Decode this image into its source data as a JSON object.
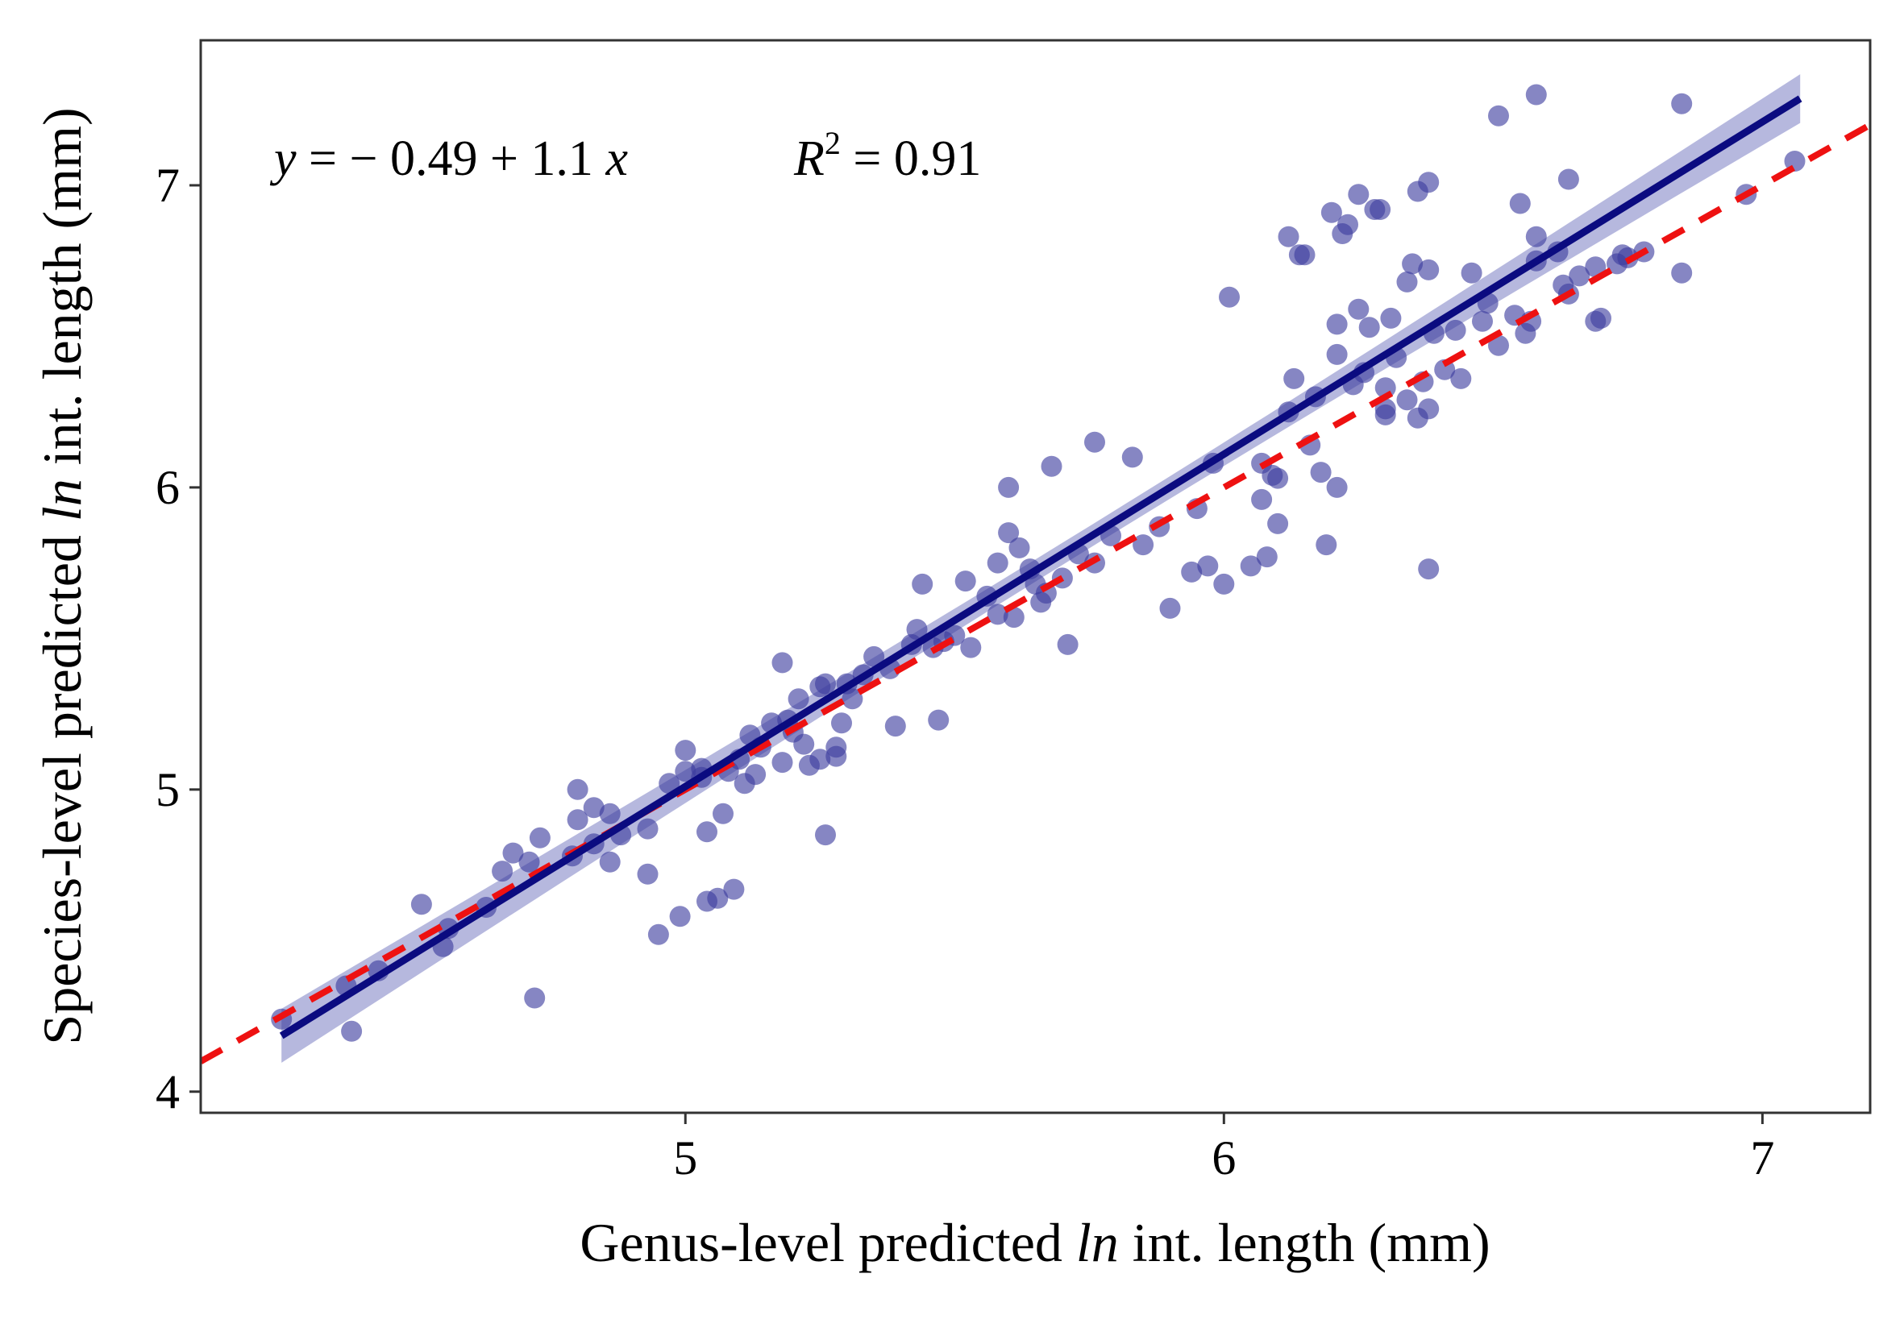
{
  "chart_data": {
    "type": "scatter",
    "xlabel": {
      "pre": "Genus-level predicted ",
      "ital": "ln",
      "post": " int. length (mm)"
    },
    "ylabel": {
      "pre": "Species-level predicted ",
      "ital": "ln",
      "post": " int. length (mm)"
    },
    "annotation": {
      "eq_y": "y",
      "eq_rest": " = − 0.49 + 1.1 ",
      "eq_x": "x",
      "r2_R": "R",
      "r2_sup": "2",
      "r2_rest": " = 0.91"
    },
    "xlim": [
      4.1,
      7.2
    ],
    "ylim": [
      3.93,
      7.48
    ],
    "xticks": [
      5,
      6,
      7
    ],
    "yticks": [
      4,
      5,
      6,
      7
    ],
    "x_tick_labels": [
      "5",
      "6",
      "7"
    ],
    "y_tick_labels": [
      "4",
      "5",
      "6",
      "7"
    ],
    "grid": false,
    "legend": "none",
    "regression": {
      "intercept": -0.49,
      "slope": 1.1,
      "x_range": [
        4.25,
        7.07
      ],
      "r2": 0.91
    },
    "reference_line": {
      "intercept": 0,
      "slope": 1,
      "style": "dashed"
    },
    "colors": {
      "points": "#3b3b9e",
      "fit_line": "#0b0b80",
      "ribbon": "#a9acd8",
      "reference_line": "#ee1111",
      "frame": "#333333"
    },
    "points": [
      [
        4.25,
        4.24
      ],
      [
        4.37,
        4.35
      ],
      [
        4.38,
        4.2
      ],
      [
        4.43,
        4.4
      ],
      [
        4.51,
        4.62
      ],
      [
        4.55,
        4.48
      ],
      [
        4.56,
        4.54
      ],
      [
        4.63,
        4.61
      ],
      [
        4.66,
        4.73
      ],
      [
        4.68,
        4.79
      ],
      [
        4.71,
        4.76
      ],
      [
        4.72,
        4.31
      ],
      [
        4.73,
        4.84
      ],
      [
        4.79,
        4.78
      ],
      [
        4.8,
        4.9
      ],
      [
        4.8,
        5.0
      ],
      [
        4.83,
        4.94
      ],
      [
        4.83,
        4.82
      ],
      [
        4.86,
        4.76
      ],
      [
        4.86,
        4.92
      ],
      [
        4.88,
        4.85
      ],
      [
        4.93,
        4.72
      ],
      [
        4.93,
        4.87
      ],
      [
        4.95,
        4.52
      ],
      [
        4.97,
        5.02
      ],
      [
        4.99,
        4.58
      ],
      [
        5.0,
        5.06
      ],
      [
        5.0,
        5.13
      ],
      [
        5.03,
        5.07
      ],
      [
        5.03,
        5.04
      ],
      [
        5.04,
        4.86
      ],
      [
        5.04,
        4.63
      ],
      [
        5.06,
        4.64
      ],
      [
        5.07,
        4.92
      ],
      [
        5.08,
        5.06
      ],
      [
        5.09,
        4.67
      ],
      [
        5.1,
        5.1
      ],
      [
        5.11,
        5.02
      ],
      [
        5.12,
        5.18
      ],
      [
        5.13,
        5.05
      ],
      [
        5.14,
        5.14
      ],
      [
        5.16,
        5.22
      ],
      [
        5.18,
        5.09
      ],
      [
        5.18,
        5.42
      ],
      [
        5.19,
        5.23
      ],
      [
        5.2,
        5.19
      ],
      [
        5.21,
        5.3
      ],
      [
        5.22,
        5.15
      ],
      [
        5.23,
        5.08
      ],
      [
        5.25,
        5.34
      ],
      [
        5.25,
        5.1
      ],
      [
        5.26,
        5.35
      ],
      [
        5.26,
        4.85
      ],
      [
        5.28,
        5.11
      ],
      [
        5.28,
        5.14
      ],
      [
        5.29,
        5.22
      ],
      [
        5.3,
        5.35
      ],
      [
        5.31,
        5.3
      ],
      [
        5.33,
        5.38
      ],
      [
        5.35,
        5.44
      ],
      [
        5.38,
        5.4
      ],
      [
        5.39,
        5.21
      ],
      [
        5.42,
        5.48
      ],
      [
        5.43,
        5.53
      ],
      [
        5.44,
        5.68
      ],
      [
        5.46,
        5.47
      ],
      [
        5.47,
        5.23
      ],
      [
        5.48,
        5.49
      ],
      [
        5.5,
        5.51
      ],
      [
        5.52,
        5.69
      ],
      [
        5.53,
        5.47
      ],
      [
        5.56,
        5.64
      ],
      [
        5.58,
        5.58
      ],
      [
        5.58,
        5.75
      ],
      [
        5.6,
        5.85
      ],
      [
        5.6,
        6.0
      ],
      [
        5.61,
        5.57
      ],
      [
        5.62,
        5.8
      ],
      [
        5.64,
        5.73
      ],
      [
        5.65,
        5.68
      ],
      [
        5.66,
        5.62
      ],
      [
        5.67,
        5.65
      ],
      [
        5.68,
        6.07
      ],
      [
        5.7,
        5.7
      ],
      [
        5.71,
        5.48
      ],
      [
        5.73,
        5.78
      ],
      [
        5.76,
        5.75
      ],
      [
        5.76,
        6.15
      ],
      [
        5.79,
        5.84
      ],
      [
        5.83,
        6.1
      ],
      [
        5.85,
        5.81
      ],
      [
        5.88,
        5.87
      ],
      [
        5.9,
        5.6
      ],
      [
        5.94,
        5.72
      ],
      [
        5.95,
        5.93
      ],
      [
        5.97,
        5.74
      ],
      [
        5.98,
        6.08
      ],
      [
        6.0,
        5.68
      ],
      [
        6.01,
        6.63
      ],
      [
        6.05,
        5.74
      ],
      [
        6.07,
        6.08
      ],
      [
        6.07,
        5.96
      ],
      [
        6.08,
        5.77
      ],
      [
        6.09,
        6.04
      ],
      [
        6.1,
        5.88
      ],
      [
        6.1,
        6.03
      ],
      [
        6.12,
        6.83
      ],
      [
        6.12,
        6.25
      ],
      [
        6.13,
        6.36
      ],
      [
        6.14,
        6.77
      ],
      [
        6.15,
        6.77
      ],
      [
        6.16,
        6.14
      ],
      [
        6.17,
        6.3
      ],
      [
        6.18,
        6.05
      ],
      [
        6.19,
        5.81
      ],
      [
        6.2,
        6.91
      ],
      [
        6.21,
        6.54
      ],
      [
        6.21,
        6.44
      ],
      [
        6.21,
        6.0
      ],
      [
        6.22,
        6.84
      ],
      [
        6.23,
        6.87
      ],
      [
        6.24,
        6.34
      ],
      [
        6.25,
        6.97
      ],
      [
        6.25,
        6.59
      ],
      [
        6.26,
        6.38
      ],
      [
        6.27,
        6.53
      ],
      [
        6.28,
        6.92
      ],
      [
        6.29,
        6.92
      ],
      [
        6.3,
        6.33
      ],
      [
        6.3,
        6.26
      ],
      [
        6.3,
        6.24
      ],
      [
        6.31,
        6.56
      ],
      [
        6.32,
        6.43
      ],
      [
        6.34,
        6.29
      ],
      [
        6.34,
        6.68
      ],
      [
        6.35,
        6.74
      ],
      [
        6.36,
        6.23
      ],
      [
        6.36,
        6.98
      ],
      [
        6.37,
        6.35
      ],
      [
        6.38,
        6.26
      ],
      [
        6.38,
        7.01
      ],
      [
        6.38,
        6.72
      ],
      [
        6.38,
        5.73
      ],
      [
        6.39,
        6.51
      ],
      [
        6.41,
        6.39
      ],
      [
        6.43,
        6.52
      ],
      [
        6.44,
        6.36
      ],
      [
        6.46,
        6.71
      ],
      [
        6.48,
        6.55
      ],
      [
        6.49,
        6.61
      ],
      [
        6.51,
        6.47
      ],
      [
        6.51,
        7.23
      ],
      [
        6.54,
        6.57
      ],
      [
        6.55,
        6.94
      ],
      [
        6.56,
        6.51
      ],
      [
        6.57,
        6.55
      ],
      [
        6.58,
        6.75
      ],
      [
        6.58,
        7.3
      ],
      [
        6.58,
        6.83
      ],
      [
        6.62,
        6.78
      ],
      [
        6.63,
        6.67
      ],
      [
        6.64,
        7.02
      ],
      [
        6.64,
        6.64
      ],
      [
        6.66,
        6.7
      ],
      [
        6.69,
        6.55
      ],
      [
        6.69,
        6.73
      ],
      [
        6.7,
        6.56
      ],
      [
        6.73,
        6.74
      ],
      [
        6.74,
        6.77
      ],
      [
        6.75,
        6.76
      ],
      [
        6.78,
        6.78
      ],
      [
        6.85,
        6.71
      ],
      [
        6.85,
        7.27
      ],
      [
        6.97,
        6.97
      ],
      [
        7.06,
        7.08
      ]
    ]
  }
}
